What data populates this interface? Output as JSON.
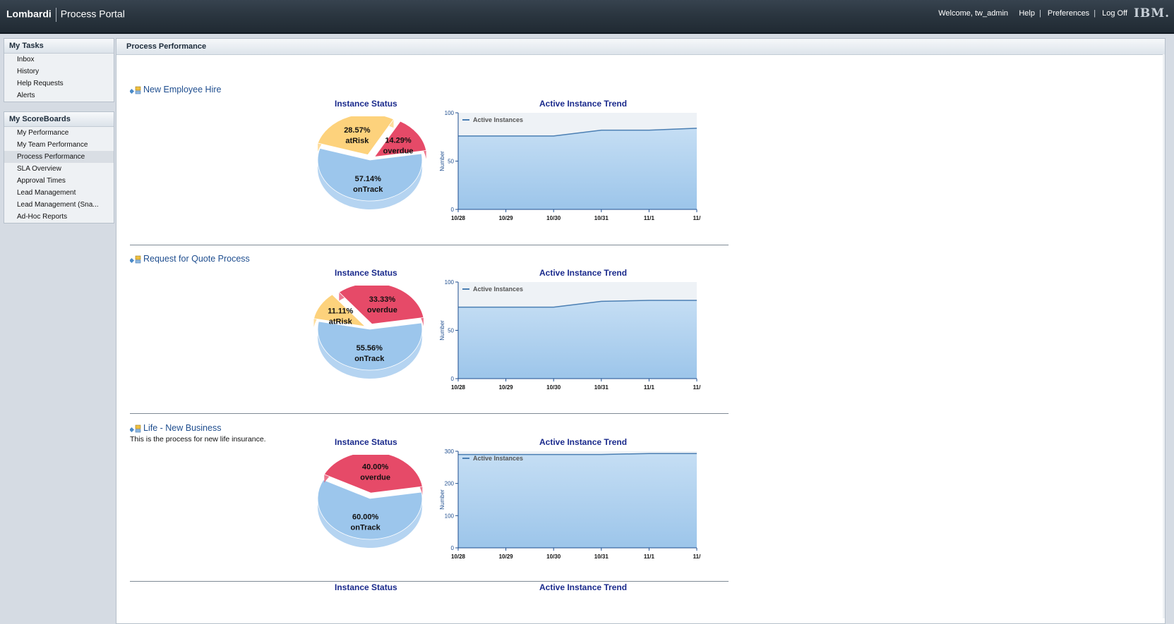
{
  "header": {
    "brand": "Lombardi",
    "product": "Process Portal",
    "welcome": "Welcome, tw_admin",
    "help": "Help",
    "preferences": "Preferences",
    "logoff": "Log Off",
    "logo": "IBM."
  },
  "sidebar": {
    "tasks_title": "My Tasks",
    "tasks": [
      "Inbox",
      "History",
      "Help Requests",
      "Alerts"
    ],
    "scoreboards_title": "My ScoreBoards",
    "scoreboards": [
      "My Performance",
      "My Team Performance",
      "Process Performance",
      "SLA Overview",
      "Approval Times",
      "Lead Management",
      "Lead Management (Sna...",
      "Ad-Hoc Reports"
    ],
    "active_item": "Process Performance"
  },
  "main": {
    "title": "Process Performance",
    "sections": [
      {
        "name": "New Employee Hire",
        "description": "",
        "pie_title": "Instance Status",
        "trend_title": "Active Instance Trend",
        "pie": [
          {
            "label": "onTrack",
            "percent": "57.14%",
            "value": 57.14
          },
          {
            "label": "atRisk",
            "percent": "28.57%",
            "value": 28.57
          },
          {
            "label": "overdue",
            "percent": "14.29%",
            "value": 14.29
          }
        ]
      },
      {
        "name": "Request for Quote Process",
        "description": "",
        "pie_title": "Instance Status",
        "trend_title": "Active Instance Trend",
        "pie": [
          {
            "label": "onTrack",
            "percent": "55.56%",
            "value": 55.56
          },
          {
            "label": "atRisk",
            "percent": "11.11%",
            "value": 11.11
          },
          {
            "label": "overdue",
            "percent": "33.33%",
            "value": 33.33
          }
        ]
      },
      {
        "name": "Life - New Business",
        "description": "This is the process for new life insurance.",
        "pie_title": "Instance Status",
        "trend_title": "Active Instance Trend",
        "pie": [
          {
            "label": "onTrack",
            "percent": "60.00%",
            "value": 60.0
          },
          {
            "label": "overdue",
            "percent": "40.00%",
            "value": 40.0
          }
        ]
      }
    ],
    "cut_pie_title": "Instance Status",
    "cut_trend_title": "Active Instance Trend"
  },
  "colors": {
    "onTrack": "#9cc6ec",
    "atRisk": "#fdd27c",
    "overdue": "#e64a68",
    "trend_fill": "#9cc5ea",
    "trend_line": "#4b7fb3",
    "title_blue": "#1a2a8c",
    "link_blue": "#1f4e8f"
  },
  "icons": {
    "process": "process-diagram-icon"
  },
  "chart_data": [
    {
      "type": "area",
      "title": "Active Instance Trend",
      "ylabel": "Number",
      "legend": "top-left",
      "x": [
        "10/28",
        "10/29",
        "10/30",
        "10/31",
        "11/1",
        "11/"
      ],
      "ylim": [
        0,
        100
      ],
      "yticks": [
        0,
        50,
        100
      ],
      "series": [
        {
          "name": "Active Instances",
          "values": [
            76,
            76,
            76,
            82,
            82,
            84
          ]
        }
      ]
    },
    {
      "type": "area",
      "title": "Active Instance Trend",
      "ylabel": "Number",
      "legend": "top-left",
      "x": [
        "10/28",
        "10/29",
        "10/30",
        "10/31",
        "11/1",
        "11/"
      ],
      "ylim": [
        0,
        100
      ],
      "yticks": [
        0,
        50,
        100
      ],
      "series": [
        {
          "name": "Active Instances",
          "values": [
            74,
            74,
            74,
            80,
            81,
            81
          ]
        }
      ]
    },
    {
      "type": "area",
      "title": "Active Instance Trend",
      "ylabel": "Number",
      "legend": "top-left",
      "x": [
        "10/28",
        "10/29",
        "10/30",
        "10/31",
        "11/1",
        "11/"
      ],
      "ylim": [
        0,
        300
      ],
      "yticks": [
        0,
        100,
        200,
        300
      ],
      "series": [
        {
          "name": "Active Instances",
          "values": [
            290,
            290,
            290,
            290,
            293,
            293
          ]
        }
      ]
    }
  ]
}
